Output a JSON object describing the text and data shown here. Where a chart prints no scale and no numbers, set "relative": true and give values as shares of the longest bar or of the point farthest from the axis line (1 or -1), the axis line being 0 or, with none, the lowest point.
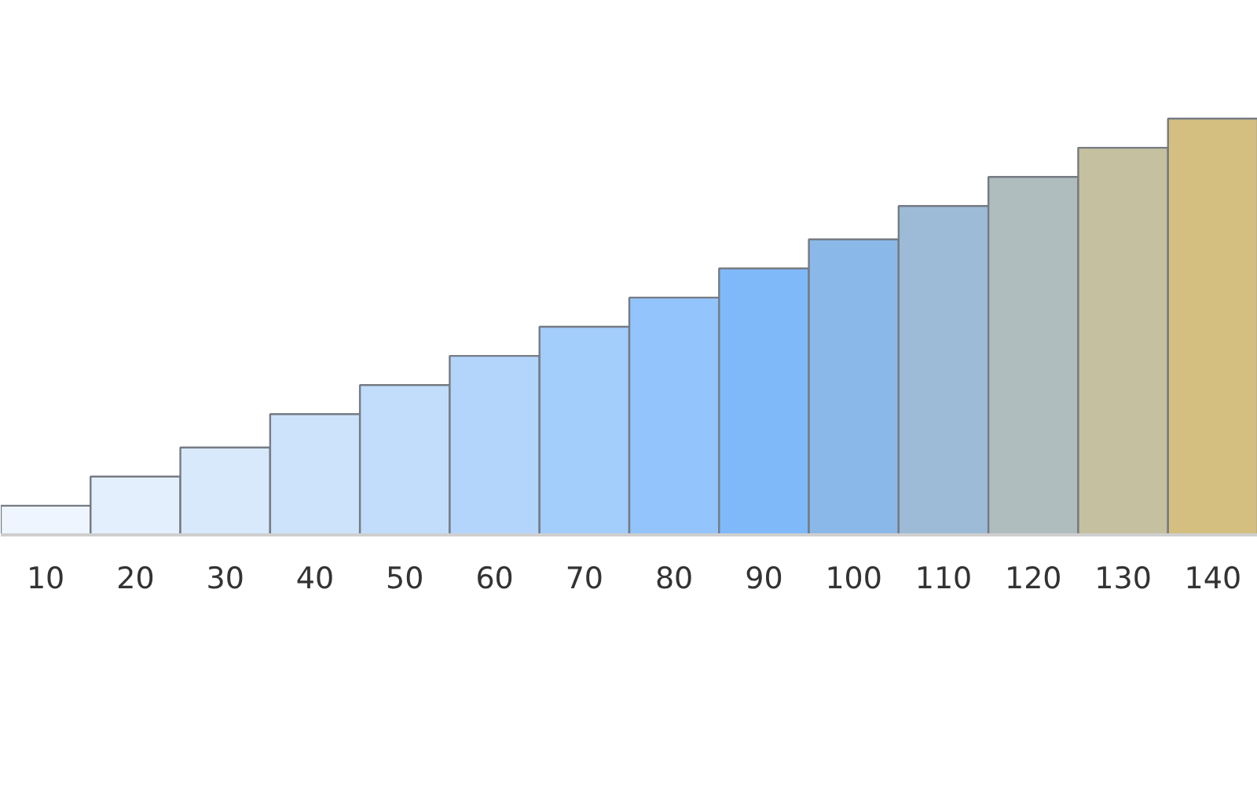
{
  "chart_data": {
    "type": "bar",
    "relative": true,
    "categories": [
      "10",
      "20",
      "30",
      "40",
      "50",
      "60",
      "70",
      "80",
      "90",
      "100",
      "110",
      "120",
      "130",
      "140"
    ],
    "values": [
      0.07,
      0.14,
      0.21,
      0.29,
      0.36,
      0.43,
      0.5,
      0.57,
      0.64,
      0.71,
      0.79,
      0.86,
      0.93,
      1
    ],
    "colors": [
      "#eef5fe",
      "#e3effd",
      "#d8e9fc",
      "#cde3fb",
      "#c1ddfb",
      "#b3d5fb",
      "#a3cdfb",
      "#93c4fb",
      "#80b9fa",
      "#8ab8e8",
      "#9dbbd6",
      "#afbdbf",
      "#c5c09f",
      "#d4bf80"
    ]
  }
}
